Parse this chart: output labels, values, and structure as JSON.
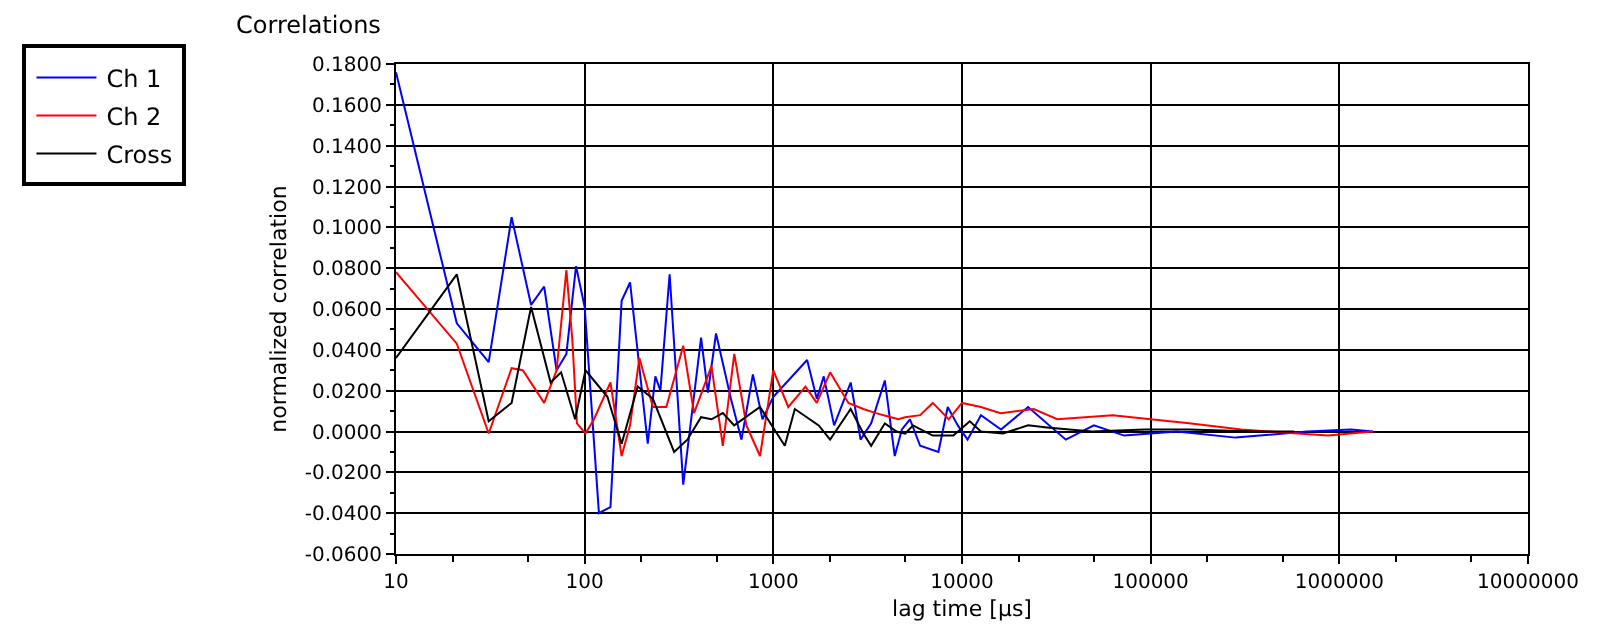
{
  "chart_data": {
    "type": "line",
    "title": "Correlations",
    "xlabel": "lag time [µs]",
    "ylabel": "normalized correlation",
    "log": "x",
    "grid": true,
    "legend": "top left",
    "marker": "none",
    "line_style": "solid",
    "xlim": [
      10,
      10000000
    ],
    "xticks": [
      10,
      100,
      1000,
      10000,
      100000,
      1000000,
      10000000
    ],
    "ylim": [
      -0.06,
      0.18
    ],
    "yticks": [
      {
        "value": -0.06,
        "label": "-0.0600"
      },
      {
        "value": -0.04,
        "label": "-0.0400"
      },
      {
        "value": -0.02,
        "label": "-0.0200"
      },
      {
        "value": 0,
        "label": "0.0000"
      },
      {
        "value": 0.02,
        "label": "0.0200"
      },
      {
        "value": 0.04,
        "label": "0.0400"
      },
      {
        "value": 0.06,
        "label": "0.0600"
      },
      {
        "value": 0.08,
        "label": "0.0800"
      },
      {
        "value": 0.1,
        "label": "0.1000"
      },
      {
        "value": 0.12,
        "label": "0.1200"
      },
      {
        "value": 0.14,
        "label": "0.1400"
      },
      {
        "value": 0.16,
        "label": "0.1600"
      },
      {
        "value": 0.18,
        "label": "0.1800"
      }
    ],
    "series": [
      {
        "name": "Ch 1",
        "color": "#0000ff",
        "x": [
          10,
          21,
          31,
          41,
          52,
          61,
          71,
          80,
          90,
          100,
          119,
          137,
          157,
          174,
          216,
          237,
          252,
          282,
          333,
          414,
          450,
          497,
          596,
          678,
          779,
          876,
          1000,
          1510,
          1700,
          1850,
          2100,
          2570,
          2900,
          3300,
          3900,
          4400,
          4800,
          5300,
          6000,
          7500,
          8400,
          9500,
          10700,
          12600,
          16100,
          22400,
          35500,
          50000,
          72400,
          138000,
          282000,
          676000,
          1150000,
          1510000
        ],
        "values": [
          0.176,
          0.053,
          0.034,
          0.105,
          0.062,
          0.071,
          0.03,
          0.038,
          0.081,
          0.061,
          -0.04,
          -0.037,
          0.064,
          0.073,
          -0.006,
          0.027,
          0.02,
          0.077,
          -0.026,
          0.046,
          0.019,
          0.048,
          0.016,
          -0.004,
          0.028,
          0.006,
          0.017,
          0.035,
          0.016,
          0.027,
          0.003,
          0.024,
          -0.004,
          0.004,
          0.025,
          -0.012,
          0.001,
          0.006,
          -0.007,
          -0.01,
          0.012,
          0.003,
          -0.004,
          0.008,
          0.001,
          0.012,
          -0.004,
          0.003,
          -0.002,
          0,
          -0.003,
          0,
          0.001,
          0
        ]
      },
      {
        "name": "Ch 2",
        "color": "#ff0000",
        "x": [
          10,
          21,
          31,
          41,
          47,
          61,
          71,
          80,
          86,
          91,
          101,
          112,
          137,
          157,
          174,
          195,
          230,
          271,
          333,
          380,
          470,
          540,
          621,
          720,
          850,
          1000,
          1200,
          1480,
          1700,
          2000,
          2500,
          3000,
          3500,
          4200,
          4600,
          5000,
          6000,
          7000,
          8500,
          10000,
          12600,
          16000,
          24000,
          32000,
          63000,
          100000,
          160000,
          302000,
          600000,
          871000,
          1510000
        ],
        "values": [
          0.078,
          0.043,
          -0.001,
          0.031,
          0.03,
          0.014,
          0.03,
          0.079,
          0.045,
          0.004,
          -0.001,
          0.006,
          0.024,
          -0.012,
          0.003,
          0.036,
          0.012,
          0.012,
          0.042,
          0.009,
          0.032,
          -0.007,
          0.038,
          0.003,
          -0.012,
          0.03,
          0.012,
          0.022,
          0.014,
          0.029,
          0.014,
          0.011,
          0.009,
          0.007,
          0.006,
          0.007,
          0.008,
          0.014,
          0.006,
          0.014,
          0.012,
          0.009,
          0.011,
          0.006,
          0.008,
          0.006,
          0.004,
          0.001,
          -0.001,
          -0.002,
          0
        ]
      },
      {
        "name": "Cross",
        "color": "#000000",
        "x": [
          10,
          21,
          31,
          41,
          52,
          66,
          75,
          89,
          101,
          132,
          157,
          191,
          230,
          298,
          350,
          414,
          470,
          540,
          620,
          850,
          1150,
          1300,
          1740,
          2000,
          2570,
          3000,
          3300,
          3900,
          4500,
          5000,
          5500,
          7000,
          9000,
          11000,
          12600,
          16500,
          22400,
          28200,
          48900,
          93300,
          160000,
          355000,
          575000
        ],
        "values": [
          0.036,
          0.077,
          0.005,
          0.014,
          0.061,
          0.024,
          0.029,
          0.006,
          0.03,
          0.017,
          -0.006,
          0.022,
          0.016,
          -0.01,
          -0.004,
          0.007,
          0.006,
          0.009,
          0.003,
          0.012,
          -0.007,
          0.011,
          0.003,
          -0.004,
          0.011,
          -0.001,
          -0.007,
          0.004,
          0,
          -0.001,
          0.003,
          -0.002,
          -0.002,
          0.005,
          0,
          -0.001,
          0.003,
          0.002,
          0,
          0.001,
          0.001,
          0,
          0
        ]
      }
    ]
  }
}
